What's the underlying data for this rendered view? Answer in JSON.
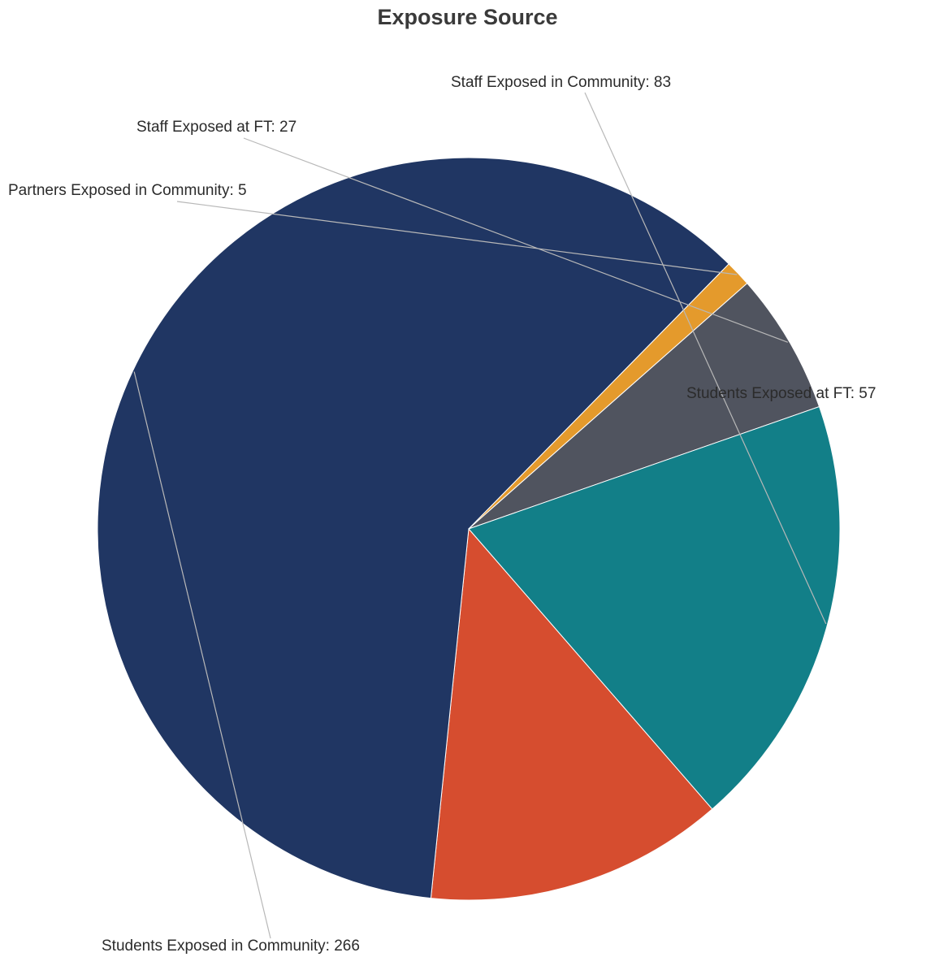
{
  "chart_data": {
    "type": "pie",
    "title": "Exposure Source",
    "slices": [
      {
        "label": "Students Exposed at FT",
        "value": 57,
        "color": "#d64d2f"
      },
      {
        "label": "Students Exposed in Community",
        "value": 266,
        "color": "#203663"
      },
      {
        "label": "Partners Exposed in Community",
        "value": 5,
        "color": "#e49a2c"
      },
      {
        "label": "Staff Exposed at FT",
        "value": 27,
        "color": "#50545f"
      },
      {
        "label": "Staff Exposed in Community",
        "value": 83,
        "color": "#127f88"
      }
    ],
    "data_labels": [
      "Students Exposed at FT: 57",
      "Students Exposed in Community: 266",
      "Partners Exposed in Community: 5",
      "Staff Exposed at FT: 27",
      "Staff Exposed in Community: 83"
    ]
  }
}
